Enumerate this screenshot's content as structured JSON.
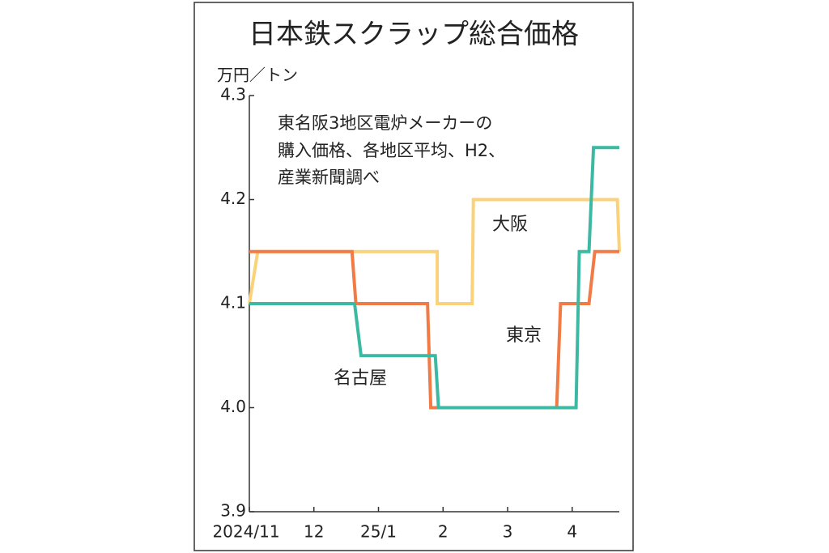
{
  "chart_data": {
    "type": "line",
    "title": "日本鉄スクラップ総合価格",
    "y_label": "万円／トン",
    "note": [
      "東名阪3地区電炉メーカーの",
      "購入価格、各地区平均、H2、",
      "産業新聞調べ"
    ],
    "xlim": [
      0,
      5.73
    ],
    "xticks": [
      {
        "value": 0,
        "label": "2024/11"
      },
      {
        "value": 1,
        "label": "12"
      },
      {
        "value": 2,
        "label": "25/1"
      },
      {
        "value": 3,
        "label": "2"
      },
      {
        "value": 4,
        "label": "3"
      },
      {
        "value": 5,
        "label": "4"
      }
    ],
    "ylim": [
      3.9,
      4.3
    ],
    "yticks": [
      3.9,
      {
        "value": 4,
        "label": "4.0"
      },
      4.1,
      4.2,
      4.3
    ],
    "grid": false,
    "series": [
      {
        "name": "大阪",
        "color": "#fad27a",
        "x": [
          0,
          0.13,
          2.91,
          2.91,
          3.45,
          3.47,
          5.7,
          5.73
        ],
        "values": [
          4.1,
          4.15,
          4.15,
          4.1,
          4.1,
          4.2,
          4.2,
          4.15
        ]
      },
      {
        "name": "東京",
        "color": "#f27a45",
        "x": [
          0,
          1.59,
          1.65,
          2.76,
          2.81,
          4.76,
          4.82,
          5.26,
          5.35,
          5.73
        ],
        "values": [
          4.15,
          4.15,
          4.1,
          4.1,
          4.0,
          4.0,
          4.1,
          4.1,
          4.15,
          4.15
        ]
      },
      {
        "name": "名古屋",
        "color": "#3cb9a2",
        "x": [
          0,
          1.63,
          1.73,
          2.88,
          2.93,
          5.06,
          5.11,
          5.26,
          5.33,
          5.73
        ],
        "values": [
          4.1,
          4.1,
          4.05,
          4.05,
          4.0,
          4.0,
          4.15,
          4.15,
          4.25,
          4.25
        ]
      }
    ]
  }
}
